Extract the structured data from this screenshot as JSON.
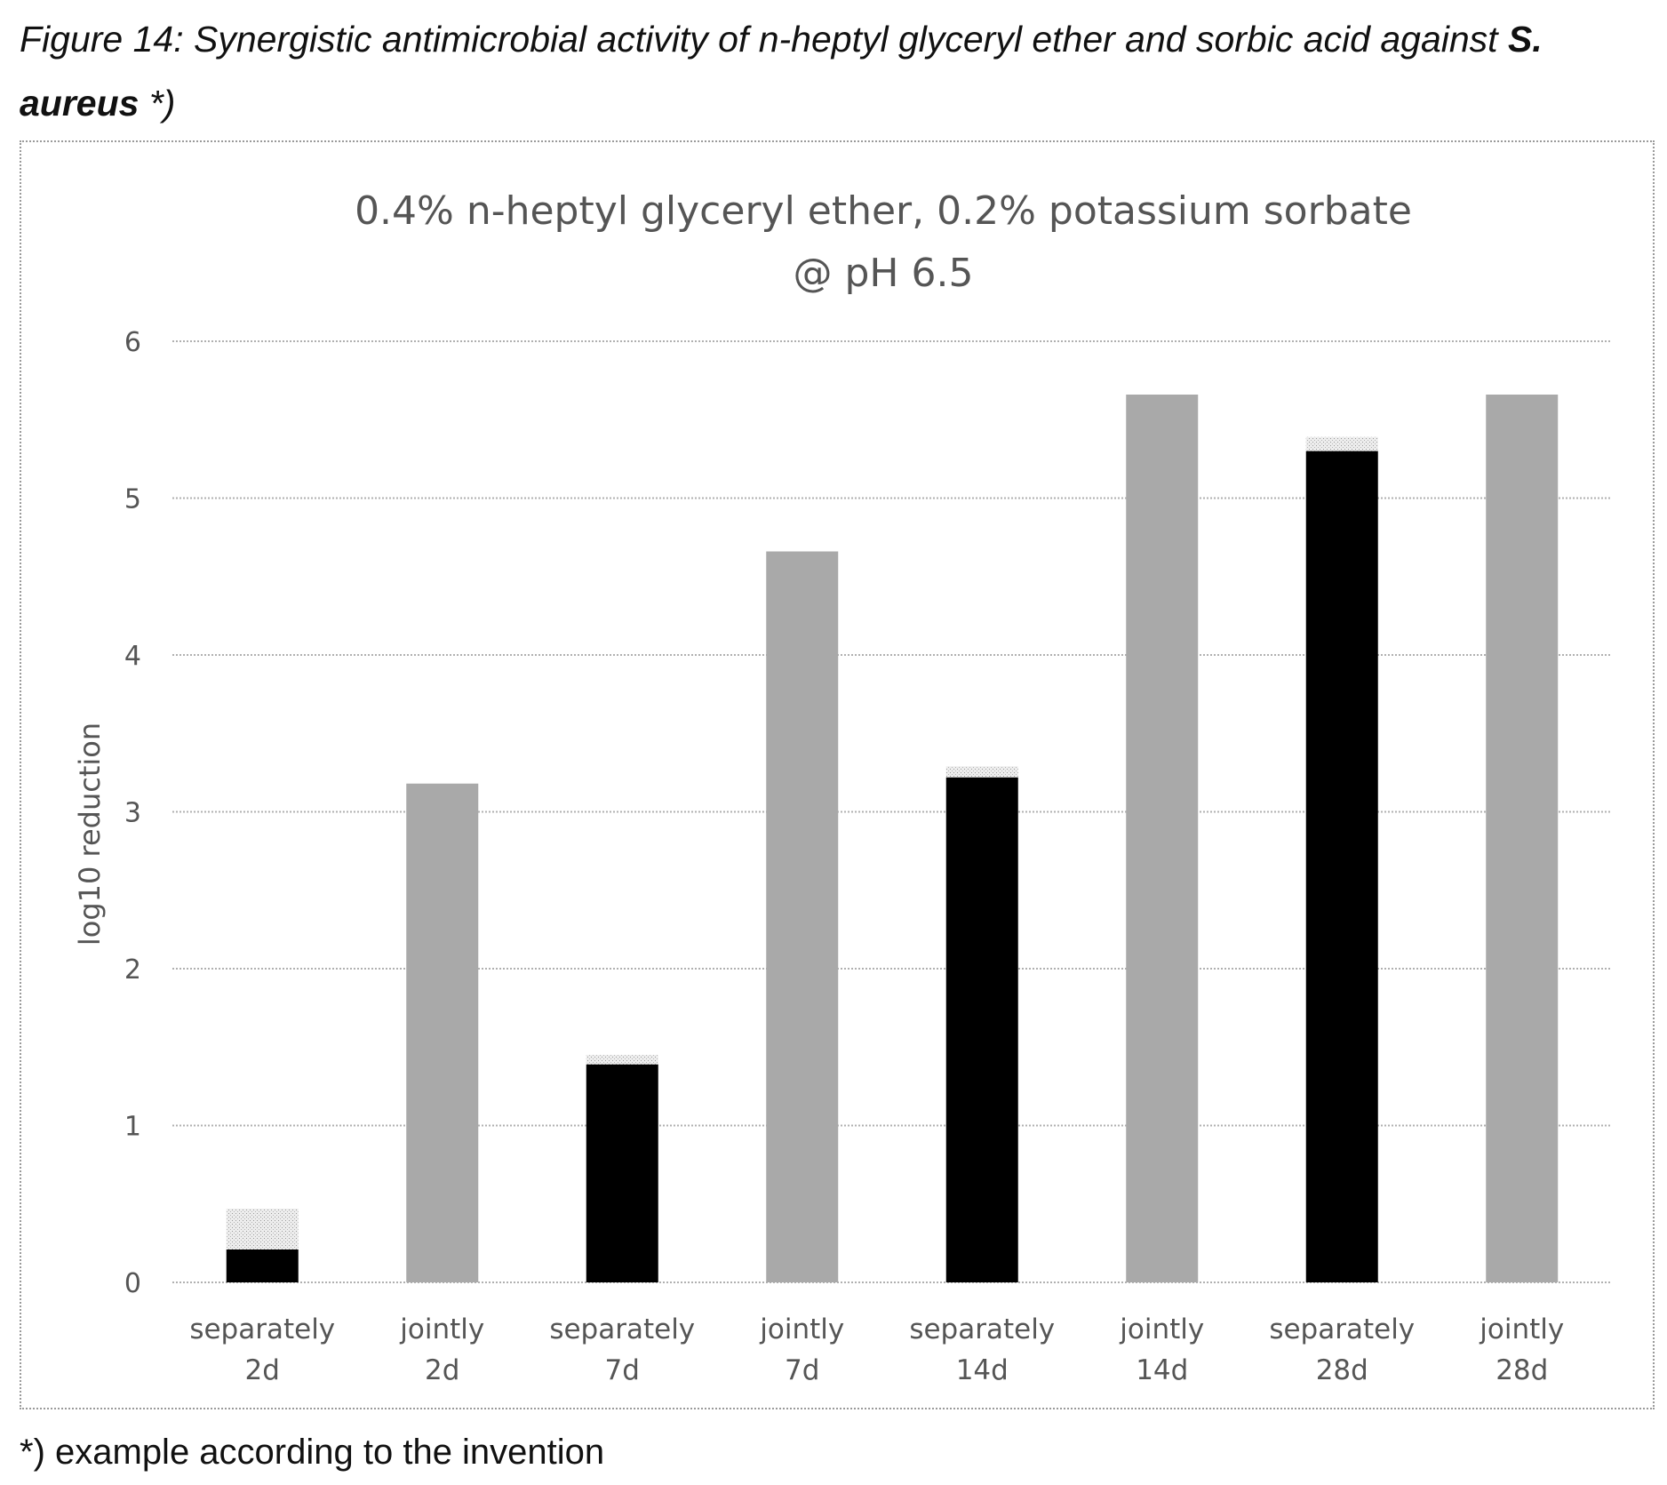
{
  "caption": {
    "prefix": "Figure 14: Synergistic antimicrobial activity of n-heptyl glyceryl ether and sorbic acid against ",
    "organism": "S. aureus",
    "suffix": " *)"
  },
  "footnote": "*) example according to the invention",
  "chart_data": {
    "type": "bar",
    "stacked": true,
    "title_lines": [
      "0.4% n-heptyl glyceryl ether, 0.2% potassium sorbate",
      "@ pH 6.5"
    ],
    "ylabel": "log10 reduction",
    "xlabel": "",
    "ylim": [
      0,
      6
    ],
    "yticks": [
      0,
      1,
      2,
      3,
      4,
      5,
      6
    ],
    "grid": true,
    "legend": "none",
    "categories": [
      [
        "separately",
        "2d"
      ],
      [
        "jointly",
        "2d"
      ],
      [
        "separately",
        "7d"
      ],
      [
        "jointly",
        "7d"
      ],
      [
        "separately",
        "14d"
      ],
      [
        "jointly",
        "14d"
      ],
      [
        "separately",
        "28d"
      ],
      [
        "jointly",
        "28d"
      ]
    ],
    "series": [
      {
        "color": "#000000",
        "values": [
          0.21,
          0,
          1.39,
          0,
          3.22,
          0,
          5.3,
          0
        ]
      },
      {
        "color": "#d6d6d6",
        "values": [
          0.26,
          0,
          0.06,
          0,
          0.07,
          0,
          0.09,
          0
        ]
      },
      {
        "color": "#a9a9a9",
        "values": [
          0,
          3.18,
          0,
          4.66,
          0,
          5.66,
          0,
          5.66
        ]
      }
    ]
  }
}
